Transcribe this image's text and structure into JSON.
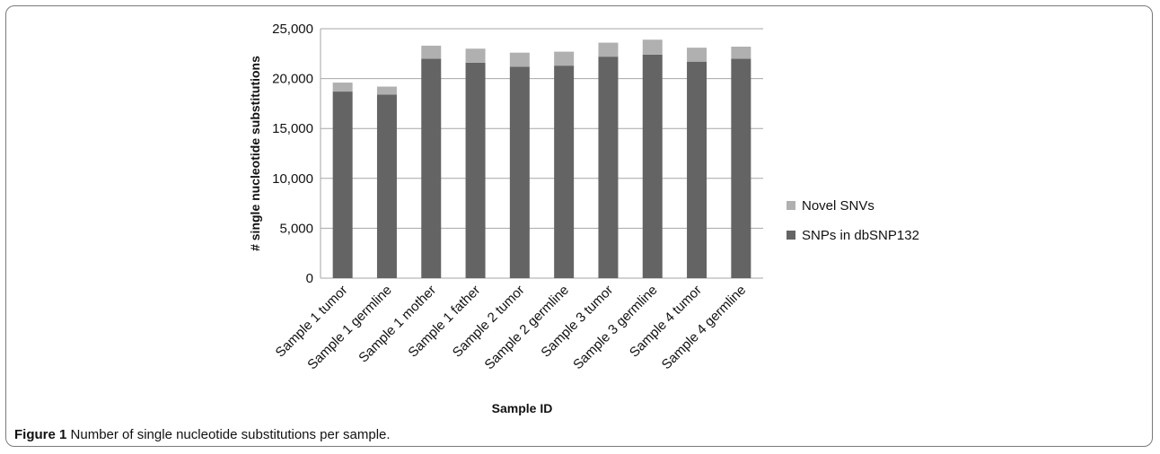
{
  "caption": {
    "label": "Figure 1",
    "text": "Number of single nucleotide substitutions per sample."
  },
  "chart_data": {
    "type": "bar",
    "stacked": true,
    "categories": [
      "Sample 1 tumor",
      "Sample 1 germline",
      "Sample 1 mother",
      "Sample 1 father",
      "Sample 2 tumor",
      "Sample 2 germline",
      "Sample 3 tumor",
      "Sample 3 germline",
      "Sample 4 tumor",
      "Sample 4 germline"
    ],
    "series": [
      {
        "name": "SNPs in dbSNP132",
        "color": "#646464",
        "values": [
          18700,
          18400,
          22000,
          21600,
          21200,
          21300,
          22200,
          22400,
          21700,
          22000
        ]
      },
      {
        "name": "Novel SNVs",
        "color": "#b0b0b0",
        "values": [
          900,
          800,
          1300,
          1400,
          1400,
          1400,
          1400,
          1500,
          1400,
          1200
        ]
      }
    ],
    "xlabel": "Sample ID",
    "ylabel": "# single nucleotide substitutions",
    "ylim": [
      0,
      25000
    ],
    "yticks": [
      "0",
      "5,000",
      "10,000",
      "15,000",
      "20,000",
      "25,000"
    ],
    "grid": true,
    "legend_position": "right"
  }
}
